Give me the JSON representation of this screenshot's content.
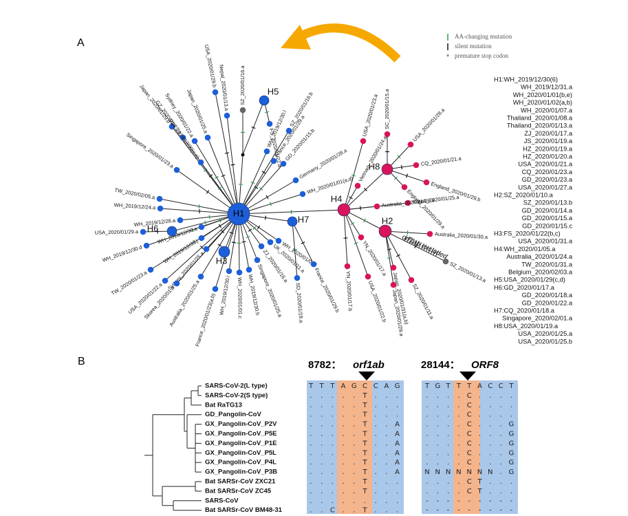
{
  "panel_a": {
    "label": "A",
    "legend": [
      "AA-changing mutation",
      "silent mutation",
      "premature stop codon"
    ],
    "haplotypes": [
      "H1",
      "H2",
      "H3",
      "H4",
      "H5",
      "H6",
      "H7",
      "H8"
    ],
    "samples": [
      "USA_2020/01/29.b",
      "SZ_2020/01/16.a",
      "Nepal_2020/01/13.a",
      "Japan_2020/01/29.b",
      "GZ_2020/01/22.a",
      "Sydney_2020/01/22.a",
      "Japan_2020/01/25.a",
      "WH_2019/12/30(c,n)",
      "Singapore_2020/01/23.a",
      "TW_2020/02/05.a",
      "WH_2019/12/24.a",
      "WH_2019/12/26.a",
      "USA_2020/01/29.a",
      "WH_2019/12/30.a",
      "WH_2019/12/30.j",
      "WH_2019/12/30.d",
      "Sydney_2020/01/25.a",
      "TW_2020/01/23.a",
      "USA_2020/01/22.a",
      "Skorea_2020/01.a",
      "Australia_2020/01/25.a",
      "France_2020/01/23(a,b)",
      "WH_2019/12/30.i",
      "WH_2020/01/01.c",
      "WH_2019/12/30.h",
      "Singapore_2020/01/25.a",
      "ZJ_2020/01/16.a",
      "UK_2020/01/11.a",
      "WH_2020/01/01.f",
      "SD_2020/01/19.a",
      "France_2020/01/29.b",
      "WH_2020/01/01(a,d)",
      "Germany_2020/01/28.a",
      "GD_2020/01/15.b",
      "France_2020/01/29.a",
      "WH_2019/12/30.l",
      "SZ_2020/01/16.b",
      "FS_2020/01/22.a",
      "Vietnam_2020/01/24.a",
      "USA_2020/01/23.a",
      "SC_2020/01/15.a",
      "USA_2020/01/28.a",
      "CQ_2020/01/21.a",
      "England_2020/01/29.a",
      "England_2020/01/29.b",
      "Korea_2020/01/25.a",
      "Australia_2020/01/28.a",
      "YN_2020/01/17.a",
      "YN_2020/01/17.b",
      "USA_2020/01/22.b",
      "Japan_2020/01/31(a,b)",
      "Japan_2020/01/29.a",
      "SZ_2020/01/11.a",
      "Australia_2020/01/30.a",
      "SZ_2020/01/13.a"
    ],
    "annotation": "orf1ab excluded",
    "haplotype_list": [
      "H1:WH_2019/12/30(6)",
      "WH_2019/12/31.a",
      "WH_2020/01/01(b,e)",
      "WH_2020/01/02(a,b)",
      "WH_2020/01/07.a",
      "Thailand_2020/01/08.a",
      "Thailand_2020/01/13.a",
      "ZJ_2020/01/17.a",
      "JS_2020/01/19.a",
      "HZ_2020/01/19.a",
      "HZ_2020/01/20.a",
      "USA_2020/01/21.a",
      "CQ_2020/01/23.a",
      "GD_2020/01/23.a",
      "USA_2020/01/27.a",
      "H2:SZ_2020/01/10.a",
      "SZ_2020/01/13.b",
      "GD_2020/01/14.a",
      "GD_2020/01/15.a",
      "GD_2020/01/15.c",
      "H3:FS_2020/01/22(b,c)",
      "USA_2020/01/31.a",
      "H4:WH_2020/01/05.a",
      "Australia_2020/01/24.a",
      "TW_2020/01/31.a",
      "Belgium_2020/02/03.a",
      "H5:USA_2020/01/29(c,d)",
      "H6:GD_2020/01/17.a",
      "GD_2020/01/18.a",
      "GD_2020/01/22.a",
      "H7:CQ_2020/01/18.a",
      "Singapore_2020/02/01.a",
      "H8:USA_2020/01/19.a",
      "USA_2020/01/25.a",
      "USA_2020/01/25.b"
    ]
  },
  "panel_b": {
    "label": "B",
    "sites": [
      {
        "position": "8782：",
        "gene": "orf1ab"
      },
      {
        "position": "28144：",
        "gene": "ORF8"
      }
    ],
    "sequences": [
      {
        "name": "SARS-CoV-2(L type)",
        "site1": [
          "T",
          "T",
          "T",
          "A",
          "G",
          "C",
          "C",
          "A",
          "G"
        ],
        "site2": [
          "T",
          "G",
          "T",
          "T",
          "T",
          "A",
          "C",
          "C",
          "T"
        ]
      },
      {
        "name": "SARS-CoV-2(S type)",
        "site1": [
          ".",
          ".",
          ".",
          ".",
          ".",
          "T",
          ".",
          ".",
          "."
        ],
        "site2": [
          ".",
          ".",
          ".",
          ".",
          "C",
          ".",
          ".",
          ".",
          "."
        ]
      },
      {
        "name": "Bat RaTG13",
        "site1": [
          ".",
          ".",
          ".",
          ".",
          ".",
          "T",
          ".",
          ".",
          "."
        ],
        "site2": [
          ".",
          ".",
          ".",
          ".",
          "C",
          ".",
          ".",
          ".",
          "."
        ]
      },
      {
        "name": "GD_Pangolin-CoV",
        "site1": [
          ".",
          ".",
          ".",
          ".",
          ".",
          "T",
          ".",
          ".",
          "."
        ],
        "site2": [
          ".",
          ".",
          ".",
          ".",
          "C",
          ".",
          ".",
          ".",
          "."
        ]
      },
      {
        "name": "GX_Pangolin-CoV_P2V",
        "site1": [
          ".",
          ".",
          ".",
          ".",
          ".",
          "T",
          ".",
          ".",
          "A"
        ],
        "site2": [
          ".",
          ".",
          ".",
          ".",
          "C",
          ".",
          ".",
          ".",
          "G"
        ]
      },
      {
        "name": "GX_Pangolin-CoV_P5E",
        "site1": [
          ".",
          ".",
          ".",
          ".",
          ".",
          "T",
          ".",
          ".",
          "A"
        ],
        "site2": [
          ".",
          ".",
          ".",
          ".",
          "C",
          ".",
          ".",
          ".",
          "G"
        ]
      },
      {
        "name": "GX_Pangolin-CoV_P1E",
        "site1": [
          ".",
          ".",
          ".",
          ".",
          ".",
          "T",
          ".",
          ".",
          "A"
        ],
        "site2": [
          ".",
          ".",
          ".",
          ".",
          "C",
          ".",
          ".",
          ".",
          "G"
        ]
      },
      {
        "name": "GX_Pangolin-CoV_P5L",
        "site1": [
          ".",
          ".",
          ".",
          ".",
          ".",
          "T",
          ".",
          ".",
          "A"
        ],
        "site2": [
          ".",
          ".",
          ".",
          ".",
          "C",
          ".",
          ".",
          ".",
          "G"
        ]
      },
      {
        "name": "GX_Pangolin-CoV_P4L",
        "site1": [
          ".",
          ".",
          ".",
          ".",
          ".",
          "T",
          ".",
          ".",
          "A"
        ],
        "site2": [
          ".",
          ".",
          ".",
          ".",
          "C",
          ".",
          ".",
          ".",
          "G"
        ]
      },
      {
        "name": "GX_Pangolin-CoV_P3B",
        "site1": [
          ".",
          ".",
          ".",
          ".",
          ".",
          "T",
          ".",
          ".",
          "A"
        ],
        "site2": [
          "N",
          "N",
          "N",
          "N",
          "N",
          "N",
          "N",
          ".",
          "G"
        ]
      },
      {
        "name": "Bat SARSr-CoV ZXC21",
        "site1": [
          ".",
          ".",
          ".",
          ".",
          ".",
          "T",
          ".",
          ".",
          "."
        ],
        "site2": [
          ".",
          ".",
          ".",
          ".",
          "C",
          "T",
          ".",
          ".",
          "."
        ]
      },
      {
        "name": "Bat SARSr-CoV ZC45",
        "site1": [
          ".",
          ".",
          ".",
          ".",
          ".",
          "T",
          ".",
          ".",
          "."
        ],
        "site2": [
          ".",
          ".",
          ".",
          ".",
          "C",
          "T",
          ".",
          ".",
          "."
        ]
      },
      {
        "name": "SARS-CoV",
        "site1": [
          ".",
          ".",
          ".",
          ".",
          ".",
          ".",
          ".",
          ".",
          "."
        ],
        "site2": [
          "-",
          "-",
          "-",
          "-",
          "-",
          "-",
          "-",
          "-",
          "-"
        ]
      },
      {
        "name": "Bat SARSr-CoV BM48-31",
        "site1": [
          ".",
          ".",
          "C",
          ".",
          ".",
          "T",
          ".",
          ".",
          "."
        ],
        "site2": [
          "-",
          "-",
          "-",
          "-",
          "-",
          "-",
          "-",
          "-",
          "-"
        ]
      }
    ]
  }
}
